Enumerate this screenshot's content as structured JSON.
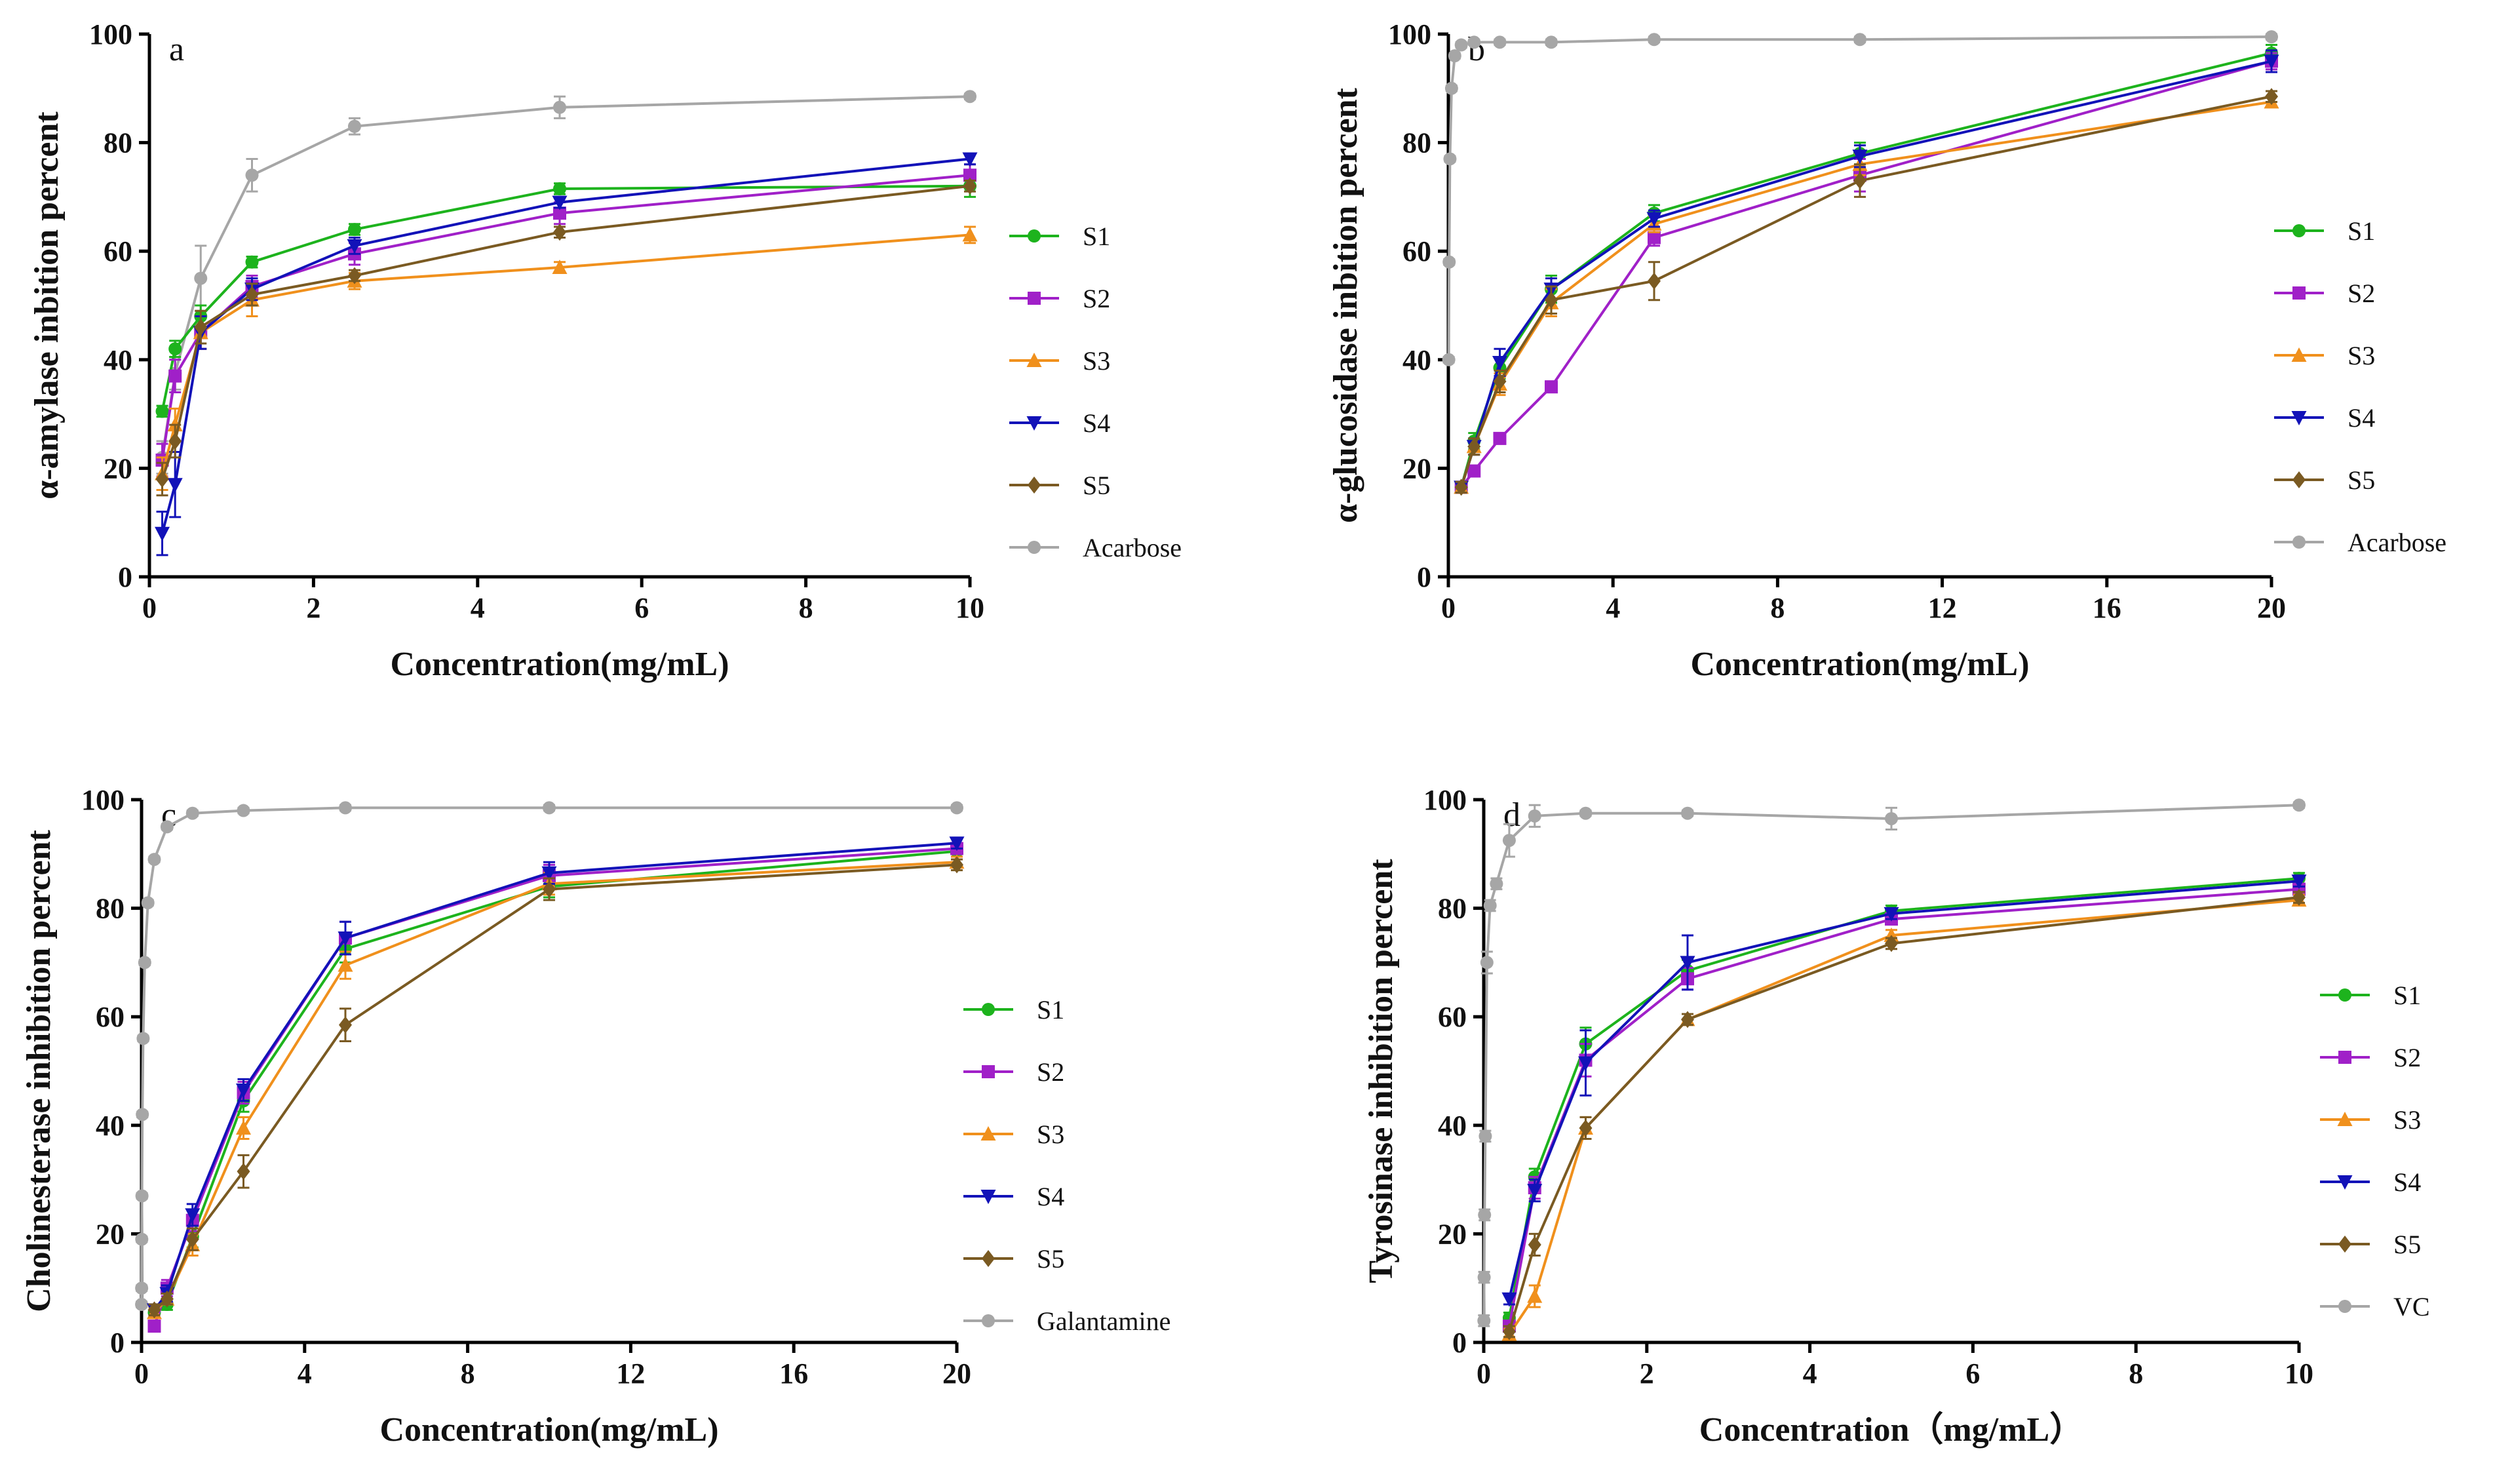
{
  "figure": {
    "series_colors": {
      "S1": "#1db31d",
      "S2": "#a020c8",
      "S3": "#f0901c",
      "S4": "#1212b8",
      "S5": "#7a5a22",
      "Control": "#a6a6a6"
    },
    "series_markers": {
      "S1": "circle",
      "S2": "square",
      "S3": "triangle-up",
      "S4": "triangle-down",
      "S5": "diamond",
      "Control": "circle"
    }
  },
  "chart_data": [
    {
      "type": "line",
      "panel": "a",
      "xlabel": "Concentration(mg/mL)",
      "ylabel": "α-amylase inbition percent",
      "xlim": [
        0,
        10
      ],
      "ylim": [
        0,
        100
      ],
      "xticks": [
        0,
        2,
        4,
        6,
        8,
        10
      ],
      "yticks": [
        0,
        20,
        40,
        60,
        80,
        100
      ],
      "series": [
        {
          "name": "S1",
          "x": [
            0.156,
            0.313,
            0.625,
            1.25,
            2.5,
            5,
            10
          ],
          "y": [
            30.5,
            42,
            48,
            58,
            64,
            71.5,
            72
          ],
          "err": [
            1,
            1.5,
            2,
            1,
            1,
            1,
            2
          ]
        },
        {
          "name": "S2",
          "x": [
            0.156,
            0.313,
            0.625,
            1.25,
            2.5,
            5,
            10
          ],
          "y": [
            21.5,
            37,
            45,
            53.5,
            59.5,
            67,
            74
          ],
          "err": [
            3,
            3,
            3,
            2,
            2,
            2,
            2
          ]
        },
        {
          "name": "S3",
          "x": [
            0.156,
            0.313,
            0.625,
            1.25,
            2.5,
            5,
            10
          ],
          "y": [
            19,
            28,
            45,
            51,
            54.5,
            57,
            63
          ],
          "err": [
            3,
            3,
            3,
            3,
            1.5,
            1,
            1.5
          ]
        },
        {
          "name": "S4",
          "x": [
            0.156,
            0.313,
            0.625,
            1.25,
            2.5,
            5,
            10
          ],
          "y": [
            8,
            17,
            45,
            53,
            61,
            69,
            77
          ],
          "err": [
            4,
            6,
            3,
            2,
            1.5,
            1,
            1
          ]
        },
        {
          "name": "S5",
          "x": [
            0.156,
            0.313,
            0.625,
            1.25,
            2.5,
            5,
            10
          ],
          "y": [
            18,
            25,
            46,
            52,
            55.5,
            63.5,
            72
          ],
          "err": [
            3,
            3,
            3,
            2,
            1,
            1,
            1
          ]
        },
        {
          "name": "Acarbose",
          "x": [
            0.156,
            0.313,
            0.625,
            1.25,
            2.5,
            5,
            10
          ],
          "y": [
            22,
            37.5,
            55,
            74,
            83,
            86.5,
            88.5
          ],
          "err": [
            3,
            3,
            6,
            3,
            1.5,
            2,
            0.5
          ]
        }
      ]
    },
    {
      "type": "line",
      "panel": "b",
      "xlabel": "Concentration(mg/mL)",
      "ylabel": "α-glucosidase inbition percent",
      "xlim": [
        0,
        20
      ],
      "ylim": [
        0,
        100
      ],
      "xticks": [
        0,
        4,
        8,
        12,
        16,
        20
      ],
      "yticks": [
        0,
        20,
        40,
        60,
        80,
        100
      ],
      "series": [
        {
          "name": "S1",
          "x": [
            0.313,
            0.625,
            1.25,
            2.5,
            5,
            10,
            20
          ],
          "y": [
            16.5,
            25,
            38.5,
            53,
            67,
            78,
            96.5
          ],
          "err": [
            1,
            1.5,
            2,
            2.5,
            1.5,
            2,
            1.5
          ]
        },
        {
          "name": "S2",
          "x": [
            0.313,
            0.625,
            1.25,
            2.5,
            5,
            10,
            20
          ],
          "y": [
            16.5,
            19.5,
            25.5,
            35,
            62.5,
            74,
            95
          ],
          "err": [
            1,
            1,
            1,
            1,
            1.5,
            3,
            1.5
          ]
        },
        {
          "name": "S3",
          "x": [
            0.313,
            0.625,
            1.25,
            2.5,
            5,
            10,
            20
          ],
          "y": [
            16.5,
            24,
            35.5,
            50.5,
            65,
            76,
            87.5
          ],
          "err": [
            1,
            1,
            2,
            2.5,
            1.5,
            2,
            1
          ]
        },
        {
          "name": "S4",
          "x": [
            0.313,
            0.625,
            1.25,
            2.5,
            5,
            10,
            20
          ],
          "y": [
            16.5,
            24,
            39.5,
            53,
            66,
            77.5,
            95
          ],
          "err": [
            1,
            1.5,
            2.5,
            2,
            1.5,
            2,
            2
          ]
        },
        {
          "name": "S5",
          "x": [
            0.313,
            0.625,
            1.25,
            2.5,
            5,
            10,
            20
          ],
          "y": [
            16.5,
            24,
            36,
            51,
            54.5,
            73,
            88.5
          ],
          "err": [
            1,
            1.5,
            2,
            2.5,
            3.5,
            3,
            1
          ]
        },
        {
          "name": "Acarbose",
          "x": [
            0.0098,
            0.0195,
            0.039,
            0.078,
            0.156,
            0.313,
            0.625,
            1.25,
            2.5,
            5,
            10,
            20
          ],
          "y": [
            40,
            58,
            77,
            90,
            96,
            98,
            98.5,
            98.5,
            98.5,
            99,
            99,
            99.5
          ],
          "err": [
            0.5,
            0.5,
            0.5,
            0.5,
            0.5,
            0.5,
            0.5,
            0.5,
            0.5,
            0.5,
            0.5,
            0.5
          ]
        }
      ]
    },
    {
      "type": "line",
      "panel": "c",
      "xlabel": "Concentration(mg/mL)",
      "ylabel": "Cholinesterase inhibition percent",
      "xlim": [
        0,
        20
      ],
      "ylim": [
        0,
        100
      ],
      "xticks": [
        0,
        4,
        8,
        12,
        16,
        20
      ],
      "yticks": [
        0,
        20,
        40,
        60,
        80,
        100
      ],
      "series": [
        {
          "name": "S1",
          "x": [
            0.313,
            0.625,
            1.25,
            2.5,
            5,
            10,
            20
          ],
          "y": [
            5.5,
            7,
            19.5,
            44.5,
            72.5,
            84,
            90.5
          ],
          "err": [
            1,
            1,
            2,
            2,
            2.5,
            2,
            1
          ]
        },
        {
          "name": "S2",
          "x": [
            0.313,
            0.625,
            1.25,
            2.5,
            5,
            10,
            20
          ],
          "y": [
            3,
            10,
            22.5,
            46,
            74.5,
            86,
            91
          ],
          "err": [
            1,
            1.5,
            2,
            2,
            3,
            2,
            1
          ]
        },
        {
          "name": "S3",
          "x": [
            0.313,
            0.625,
            1.25,
            2.5,
            5,
            10,
            20
          ],
          "y": [
            5.5,
            8,
            18,
            39.5,
            69.5,
            84.5,
            88.5
          ],
          "err": [
            1,
            1,
            2,
            2,
            2.5,
            2,
            1
          ]
        },
        {
          "name": "S4",
          "x": [
            0.313,
            0.625,
            1.25,
            2.5,
            5,
            10,
            20
          ],
          "y": [
            6,
            9,
            23.5,
            46.5,
            74.5,
            86.5,
            92
          ],
          "err": [
            1,
            1.5,
            2,
            2,
            3,
            2,
            1
          ]
        },
        {
          "name": "S5",
          "x": [
            0.313,
            0.625,
            1.25,
            2.5,
            5,
            10,
            20
          ],
          "y": [
            6,
            8,
            19,
            31.5,
            58.5,
            83.5,
            88
          ],
          "err": [
            1,
            1,
            2,
            3,
            3,
            2,
            1
          ]
        },
        {
          "name": "Galantamine",
          "x": [
            0.0012,
            0.0024,
            0.0049,
            0.0098,
            0.0195,
            0.039,
            0.078,
            0.156,
            0.313,
            0.625,
            1.25,
            2.5,
            5,
            10,
            20
          ],
          "y": [
            7,
            10,
            19,
            27,
            42,
            56,
            70,
            81,
            89,
            95,
            97.5,
            98,
            98.5,
            98.5,
            98.5
          ],
          "err": [
            0.5,
            0.5,
            0.5,
            0.5,
            0.5,
            0.5,
            0.5,
            0.5,
            0.5,
            0.5,
            0.5,
            0.5,
            0.5,
            0.5,
            0.5
          ]
        }
      ]
    },
    {
      "type": "line",
      "panel": "d",
      "xlabel": "Concentration（mg/mL）",
      "ylabel": "Tyrosinase inhibition percent",
      "xlim": [
        0,
        10
      ],
      "ylim": [
        0,
        100
      ],
      "xticks": [
        0,
        2,
        4,
        6,
        8,
        10
      ],
      "yticks": [
        0,
        20,
        40,
        60,
        80,
        100
      ],
      "series": [
        {
          "name": "S1",
          "x": [
            0.313,
            0.625,
            1.25,
            2.5,
            5,
            10
          ],
          "y": [
            4.5,
            30.5,
            55,
            68.5,
            79.5,
            85.5
          ],
          "err": [
            1,
            1.5,
            3,
            2,
            1,
            1
          ]
        },
        {
          "name": "S2",
          "x": [
            0.313,
            0.625,
            1.25,
            2.5,
            5,
            10
          ],
          "y": [
            3,
            28.5,
            52,
            67,
            78,
            83.5
          ],
          "err": [
            1,
            2,
            3,
            2,
            1,
            1
          ]
        },
        {
          "name": "S3",
          "x": [
            0.313,
            0.625,
            1.25,
            2.5,
            5,
            10
          ],
          "y": [
            1.5,
            8.5,
            39.5,
            59.5,
            75,
            81.5
          ],
          "err": [
            1,
            2,
            2,
            1,
            1,
            1
          ]
        },
        {
          "name": "S4",
          "x": [
            0.313,
            0.625,
            1.25,
            2.5,
            5,
            10
          ],
          "y": [
            8,
            28,
            51.5,
            70,
            79,
            85
          ],
          "err": [
            1,
            2,
            6,
            5,
            1,
            1
          ]
        },
        {
          "name": "S5",
          "x": [
            0.313,
            0.625,
            1.25,
            2.5,
            5,
            10
          ],
          "y": [
            2,
            18,
            39.5,
            59.5,
            73.5,
            82
          ],
          "err": [
            1,
            2,
            2,
            1,
            1,
            1
          ]
        },
        {
          "name": "VC",
          "x": [
            0.0024,
            0.0049,
            0.0098,
            0.0195,
            0.039,
            0.078,
            0.156,
            0.313,
            0.625,
            1.25,
            2.5,
            5,
            10
          ],
          "y": [
            4,
            12,
            23.5,
            38,
            70,
            80.5,
            84.5,
            92.5,
            97,
            97.5,
            97.5,
            96.5,
            99
          ],
          "err": [
            1,
            1,
            1,
            1,
            2,
            1,
            1,
            3,
            2,
            0.5,
            0.5,
            2,
            0.5
          ]
        }
      ]
    }
  ]
}
